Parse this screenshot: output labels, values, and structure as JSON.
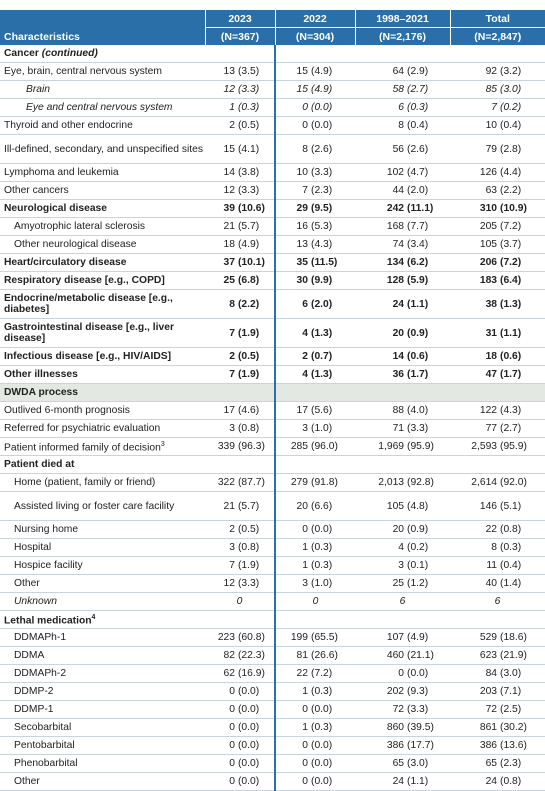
{
  "table": {
    "header": {
      "label": "Characteristics",
      "columns": [
        {
          "label": "2023",
          "n": "(N=367)"
        },
        {
          "label": "2022",
          "n": "(N=304)"
        },
        {
          "label": "1998–2021",
          "n": "(N=2,176)"
        },
        {
          "label": "Total",
          "n": "(N=2,847)"
        }
      ]
    },
    "rows": [
      {
        "label": "Cancer",
        "label_extra": "(continued)",
        "style": "section"
      },
      {
        "label": "Eye, brain, central nervous system",
        "style": "plain",
        "cells": [
          [
            "13",
            "(3.5)"
          ],
          [
            "15",
            "(4.9)"
          ],
          [
            "64",
            "(2.9)"
          ],
          [
            "92",
            "(3.2)"
          ]
        ]
      },
      {
        "label": "Brain",
        "style": "subsub",
        "cells": [
          [
            "12",
            "(3.3)"
          ],
          [
            "15",
            "(4.9)"
          ],
          [
            "58",
            "(2.7)"
          ],
          [
            "85",
            "(3.0)"
          ]
        ]
      },
      {
        "label": "Eye and central nervous system",
        "style": "subsub",
        "cells": [
          [
            "1",
            "(0.3)"
          ],
          [
            "0",
            "(0.0)"
          ],
          [
            "6",
            "(0.3)"
          ],
          [
            "7",
            "(0.2)"
          ]
        ]
      },
      {
        "label": "Thyroid and other endocrine",
        "style": "plain",
        "cells": [
          [
            "2",
            "(0.5)"
          ],
          [
            "0",
            "(0.0)"
          ],
          [
            "8",
            "(0.4)"
          ],
          [
            "10",
            "(0.4)"
          ]
        ]
      },
      {
        "label": "Ill-defined, secondary, and unspecified sites",
        "style": "plain",
        "cells": [
          [
            "15",
            "(4.1)"
          ],
          [
            "8",
            "(2.6)"
          ],
          [
            "56",
            "(2.6)"
          ],
          [
            "79",
            "(2.8)"
          ]
        ]
      },
      {
        "label": "Lymphoma and leukemia",
        "style": "plain",
        "cells": [
          [
            "14",
            "(3.8)"
          ],
          [
            "10",
            "(3.3)"
          ],
          [
            "102",
            "(4.7)"
          ],
          [
            "126",
            "(4.4)"
          ]
        ]
      },
      {
        "label": "Other cancers",
        "style": "plain",
        "cells": [
          [
            "12",
            "(3.3)"
          ],
          [
            "7",
            "(2.3)"
          ],
          [
            "44",
            "(2.0)"
          ],
          [
            "63",
            "(2.2)"
          ]
        ]
      },
      {
        "label": "Neurological disease",
        "style": "bold",
        "cells": [
          [
            "39",
            "(10.6)"
          ],
          [
            "29",
            "(9.5)"
          ],
          [
            "242",
            "(11.1)"
          ],
          [
            "310",
            "(10.9)"
          ]
        ]
      },
      {
        "label": "Amyotrophic lateral sclerosis",
        "style": "sub",
        "cells": [
          [
            "21",
            "(5.7)"
          ],
          [
            "16",
            "(5.3)"
          ],
          [
            "168",
            "(7.7)"
          ],
          [
            "205",
            "(7.2)"
          ]
        ]
      },
      {
        "label": "Other neurological disease",
        "style": "sub",
        "cells": [
          [
            "18",
            "(4.9)"
          ],
          [
            "13",
            "(4.3)"
          ],
          [
            "74",
            "(3.4)"
          ],
          [
            "105",
            "(3.7)"
          ]
        ]
      },
      {
        "label": "Heart/circulatory disease",
        "style": "bold",
        "cells": [
          [
            "37",
            "(10.1)"
          ],
          [
            "35",
            "(11.5)"
          ],
          [
            "134",
            "(6.2)"
          ],
          [
            "206",
            "(7.2)"
          ]
        ]
      },
      {
        "label": "Respiratory disease [e.g., COPD]",
        "style": "bold",
        "cells": [
          [
            "25",
            "(6.8)"
          ],
          [
            "30",
            "(9.9)"
          ],
          [
            "128",
            "(5.9)"
          ],
          [
            "183",
            "(6.4)"
          ]
        ]
      },
      {
        "label": "Endocrine/metabolic disease [e.g., diabetes]",
        "style": "bold",
        "cells": [
          [
            "8",
            "(2.2)"
          ],
          [
            "6",
            "(2.0)"
          ],
          [
            "24",
            "(1.1)"
          ],
          [
            "38",
            "(1.3)"
          ]
        ]
      },
      {
        "label": "Gastrointestinal disease [e.g., liver disease]",
        "style": "bold",
        "cells": [
          [
            "7",
            "(1.9)"
          ],
          [
            "4",
            "(1.3)"
          ],
          [
            "20",
            "(0.9)"
          ],
          [
            "31",
            "(1.1)"
          ]
        ]
      },
      {
        "label": "Infectious disease [e.g., HIV/AIDS]",
        "style": "bold",
        "cells": [
          [
            "2",
            "(0.5)"
          ],
          [
            "2",
            "(0.7)"
          ],
          [
            "14",
            "(0.6)"
          ],
          [
            "18",
            "(0.6)"
          ]
        ]
      },
      {
        "label": "Other illnesses",
        "style": "bold",
        "cells": [
          [
            "7",
            "(1.9)"
          ],
          [
            "4",
            "(1.3)"
          ],
          [
            "36",
            "(1.7)"
          ],
          [
            "47",
            "(1.7)"
          ]
        ]
      },
      {
        "label": "DWDA process",
        "style": "shaded"
      },
      {
        "label": "Outlived 6-month prognosis",
        "style": "plain",
        "cells": [
          [
            "17",
            "(4.6)"
          ],
          [
            "17",
            "(5.6)"
          ],
          [
            "88",
            "(4.0)"
          ],
          [
            "122",
            "(4.3)"
          ]
        ]
      },
      {
        "label": "Referred for psychiatric evaluation",
        "style": "plain",
        "cells": [
          [
            "3",
            "(0.8)"
          ],
          [
            "3",
            "(1.0)"
          ],
          [
            "71",
            "(3.3)"
          ],
          [
            "77",
            "(2.7)"
          ]
        ]
      },
      {
        "label": "Patient informed family of decision",
        "note": "3",
        "style": "plain",
        "cells": [
          [
            "339",
            "(96.3)"
          ],
          [
            "285",
            "(96.0)"
          ],
          [
            "1,969",
            "(95.9)"
          ],
          [
            "2,593",
            "(95.9)"
          ]
        ]
      },
      {
        "label": "Patient died at",
        "style": "section"
      },
      {
        "label": "Home (patient, family or friend)",
        "style": "sub",
        "cells": [
          [
            "322",
            "(87.7)"
          ],
          [
            "279",
            "(91.8)"
          ],
          [
            "2,013",
            "(92.8)"
          ],
          [
            "2,614",
            "(92.0)"
          ]
        ]
      },
      {
        "label": "Assisted living or foster care facility",
        "style": "sub",
        "cells": [
          [
            "21",
            "(5.7)"
          ],
          [
            "20",
            "(6.6)"
          ],
          [
            "105",
            "(4.8)"
          ],
          [
            "146",
            "(5.1)"
          ]
        ]
      },
      {
        "label": "Nursing home",
        "style": "sub",
        "cells": [
          [
            "2",
            "(0.5)"
          ],
          [
            "0",
            "(0.0)"
          ],
          [
            "20",
            "(0.9)"
          ],
          [
            "22",
            "(0.8)"
          ]
        ]
      },
      {
        "label": "Hospital",
        "style": "sub",
        "cells": [
          [
            "3",
            "(0.8)"
          ],
          [
            "1",
            "(0.3)"
          ],
          [
            "4",
            "(0.2)"
          ],
          [
            "8",
            "(0.3)"
          ]
        ]
      },
      {
        "label": "Hospice facility",
        "style": "sub",
        "cells": [
          [
            "7",
            "(1.9)"
          ],
          [
            "1",
            "(0.3)"
          ],
          [
            "3",
            "(0.1)"
          ],
          [
            "11",
            "(0.4)"
          ]
        ]
      },
      {
        "label": "Other",
        "style": "sub",
        "cells": [
          [
            "12",
            "(3.3)"
          ],
          [
            "3",
            "(1.0)"
          ],
          [
            "25",
            "(1.2)"
          ],
          [
            "40",
            "(1.4)"
          ]
        ]
      },
      {
        "label": "Unknown",
        "style": "subitalic",
        "cells": [
          [
            "0"
          ],
          [
            "0"
          ],
          [
            "6"
          ],
          [
            "6"
          ]
        ]
      },
      {
        "label": "Lethal medication",
        "note": "4",
        "style": "section"
      },
      {
        "label": "DDMAPh-1",
        "style": "sub",
        "cells": [
          [
            "223",
            "(60.8)"
          ],
          [
            "199",
            "(65.5)"
          ],
          [
            "107",
            "(4.9)"
          ],
          [
            "529",
            "(18.6)"
          ]
        ]
      },
      {
        "label": "DDMA",
        "style": "sub",
        "cells": [
          [
            "82",
            "(22.3)"
          ],
          [
            "81",
            "(26.6)"
          ],
          [
            "460",
            "(21.1)"
          ],
          [
            "623",
            "(21.9)"
          ]
        ]
      },
      {
        "label": "DDMAPh-2",
        "style": "sub",
        "cells": [
          [
            "62",
            "(16.9)"
          ],
          [
            "22",
            "(7.2)"
          ],
          [
            "0",
            "(0.0)"
          ],
          [
            "84",
            "(3.0)"
          ]
        ]
      },
      {
        "label": "DDMP-2",
        "style": "sub",
        "cells": [
          [
            "0",
            "(0.0)"
          ],
          [
            "1",
            "(0.3)"
          ],
          [
            "202",
            "(9.3)"
          ],
          [
            "203",
            "(7.1)"
          ]
        ]
      },
      {
        "label": "DDMP-1",
        "style": "sub",
        "cells": [
          [
            "0",
            "(0.0)"
          ],
          [
            "0",
            "(0.0)"
          ],
          [
            "72",
            "(3.3)"
          ],
          [
            "72",
            "(2.5)"
          ]
        ]
      },
      {
        "label": "Secobarbital",
        "style": "sub",
        "cells": [
          [
            "0",
            "(0.0)"
          ],
          [
            "1",
            "(0.3)"
          ],
          [
            "860",
            "(39.5)"
          ],
          [
            "861",
            "(30.2)"
          ]
        ]
      },
      {
        "label": "Pentobarbital",
        "style": "sub",
        "cells": [
          [
            "0",
            "(0.0)"
          ],
          [
            "0",
            "(0.0)"
          ],
          [
            "386",
            "(17.7)"
          ],
          [
            "386",
            "(13.6)"
          ]
        ]
      },
      {
        "label": "Phenobarbital",
        "style": "sub",
        "cells": [
          [
            "0",
            "(0.0)"
          ],
          [
            "0",
            "(0.0)"
          ],
          [
            "65",
            "(3.0)"
          ],
          [
            "65",
            "(2.3)"
          ]
        ]
      },
      {
        "label": "Other",
        "style": "sub",
        "cells": [
          [
            "0",
            "(0.0)"
          ],
          [
            "0",
            "(0.0)"
          ],
          [
            "24",
            "(1.1)"
          ],
          [
            "24",
            "(0.8)"
          ]
        ]
      }
    ]
  }
}
